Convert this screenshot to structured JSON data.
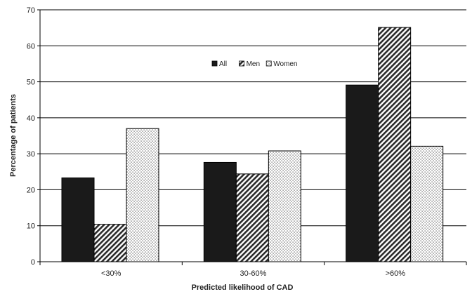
{
  "chart_data": {
    "type": "bar",
    "title": "",
    "xlabel": "Predicted likelihood of CAD",
    "ylabel": "Percentage of patients",
    "categories": [
      "<30%",
      "30-60%",
      ">60%"
    ],
    "series": [
      {
        "name": "All",
        "values": [
          23.3,
          27.6,
          49.1
        ],
        "fill": "solid",
        "color": "#1a1a1a"
      },
      {
        "name": "Men",
        "values": [
          10.4,
          24.4,
          65.1
        ],
        "fill": "hatch",
        "color": "#2a2a2a"
      },
      {
        "name": "Women",
        "values": [
          37.0,
          30.8,
          32.1
        ],
        "fill": "dots",
        "color": "#555555"
      }
    ],
    "ylim": [
      0,
      70
    ],
    "yticks": [
      0,
      10,
      20,
      30,
      40,
      50,
      60,
      70
    ],
    "grid": true,
    "legend_position": "inside-upper-center"
  }
}
